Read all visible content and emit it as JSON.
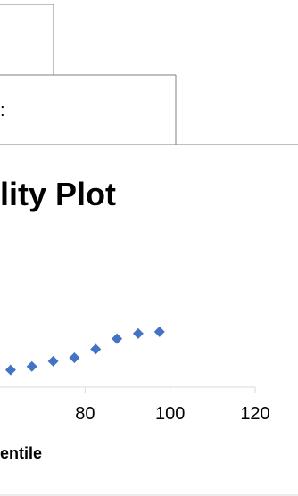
{
  "spreadsheet": {
    "cell_fragment": ":"
  },
  "chart_data": {
    "type": "scatter",
    "title": "lity Plot",
    "xlabel": "entile",
    "ylabel": "",
    "x_ticks": [
      "80",
      "100",
      "120"
    ],
    "x_tick_values": [
      80,
      100,
      120
    ],
    "xlim": [
      60,
      120
    ],
    "ylim": [
      0,
      1
    ],
    "grid": false,
    "marker_color": "#4472C4",
    "series": [
      {
        "x": [
          62.5,
          67.5,
          72.5,
          77.5,
          82.5,
          87.5,
          92.5,
          97.5
        ],
        "y": [
          0.1,
          0.12,
          0.15,
          0.17,
          0.22,
          0.28,
          0.31,
          0.32
        ]
      }
    ]
  }
}
